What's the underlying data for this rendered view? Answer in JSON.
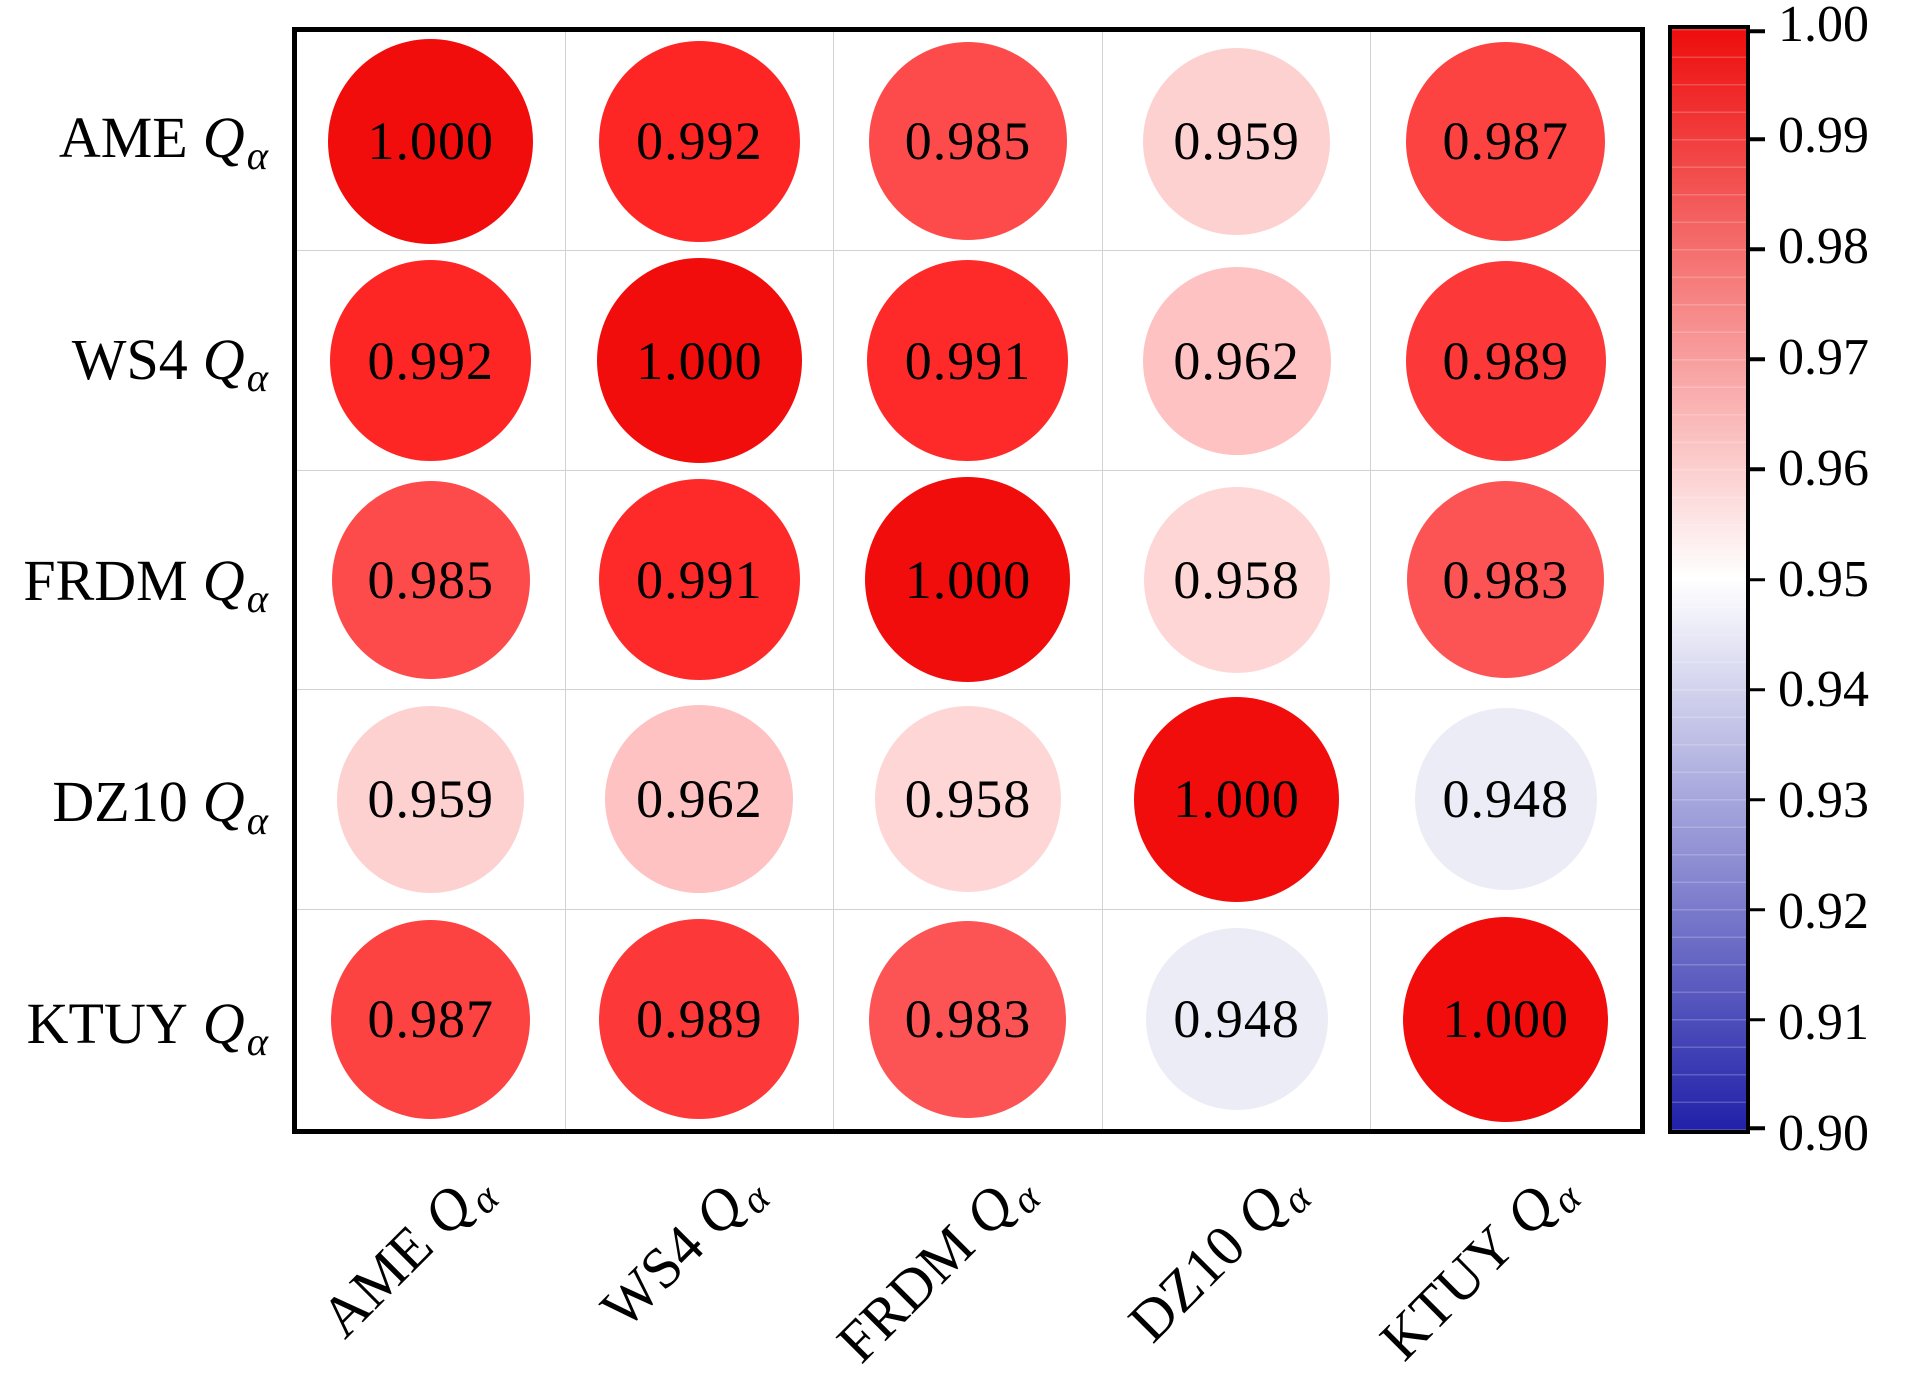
{
  "chart_data": {
    "type": "heatmap",
    "subtype": "correlation-bubble-matrix",
    "title": "",
    "categories": [
      "AME Qα",
      "WS4 Qα",
      "FRDM Qα",
      "DZ10 Qα",
      "KTUY Qα"
    ],
    "category_prefixes": [
      "AME",
      "WS4",
      "FRDM",
      "DZ10",
      "KTUY"
    ],
    "symbol": {
      "main": "Q",
      "sub": "α"
    },
    "matrix": [
      [
        1.0,
        0.992,
        0.985,
        0.959,
        0.987
      ],
      [
        0.992,
        1.0,
        0.991,
        0.962,
        0.989
      ],
      [
        0.985,
        0.991,
        1.0,
        0.958,
        0.983
      ],
      [
        0.959,
        0.962,
        0.958,
        1.0,
        0.948
      ],
      [
        0.987,
        0.989,
        0.983,
        0.948,
        1.0
      ]
    ],
    "value_labels": [
      [
        "1.000",
        "0.992",
        "0.985",
        "0.959",
        "0.987"
      ],
      [
        "0.992",
        "1.000",
        "0.991",
        "0.962",
        "0.989"
      ],
      [
        "0.985",
        "0.991",
        "1.000",
        "0.958",
        "0.983"
      ],
      [
        "0.959",
        "0.962",
        "0.958",
        "1.000",
        "0.948"
      ],
      [
        "0.987",
        "0.989",
        "0.983",
        "0.948",
        "1.000"
      ]
    ],
    "cell_colors": [
      [
        "#f20d0d",
        "#fe2525",
        "#fd4b4b",
        "#fed1d1",
        "#fd4242"
      ],
      [
        "#fe2525",
        "#f20d0d",
        "#fe2a2a",
        "#fec2c2",
        "#fd3838"
      ],
      [
        "#fd4b4b",
        "#fe2a2a",
        "#f20d0d",
        "#fed6d6",
        "#fc5454"
      ],
      [
        "#fed1d1",
        "#fec2c2",
        "#fed6d6",
        "#f20d0d",
        "#ebecf5"
      ],
      [
        "#fd4242",
        "#fd3838",
        "#fc5454",
        "#ebecf5",
        "#f20d0d"
      ]
    ],
    "value_range": [
      0.9,
      1.0
    ],
    "color_scale": {
      "high_color": "#ee0d0d",
      "mid_color": "#ffffff",
      "low_color": "#2121a9",
      "mid_value": 0.95
    },
    "colorbar_ticks": [
      "1.00",
      "0.99",
      "0.98",
      "0.97",
      "0.96",
      "0.95",
      "0.94",
      "0.93",
      "0.92",
      "0.91",
      "0.90"
    ],
    "grid": true,
    "legend_position": "right-colorbar"
  },
  "style": {
    "plot_border_color": "#000000",
    "grid_color": "#d2d2d2",
    "text_color": "#000000",
    "background": "#ffffff"
  }
}
